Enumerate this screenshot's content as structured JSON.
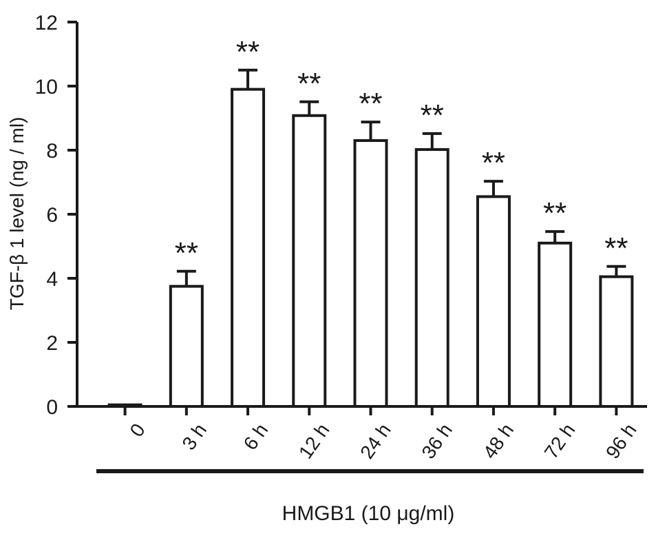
{
  "chart_data": {
    "type": "bar",
    "title": "",
    "xlabel": "",
    "ylabel": "TGF-β 1 level (ng / ml)",
    "ylim": [
      0,
      12
    ],
    "yticks": [
      "0",
      "2",
      "4",
      "6",
      "8",
      "10",
      "12"
    ],
    "categories": [
      "0",
      "3 h",
      "6 h",
      "12 h",
      "24 h",
      "36 h",
      "48 h",
      "72 h",
      "96 h"
    ],
    "values": [
      0.05,
      3.75,
      9.9,
      9.08,
      8.3,
      8.02,
      6.55,
      5.1,
      4.05
    ],
    "errors": [
      0.02,
      0.47,
      0.6,
      0.43,
      0.58,
      0.5,
      0.48,
      0.36,
      0.32
    ],
    "annotations": [
      "",
      "**",
      "**",
      "**",
      "**",
      "**",
      "**",
      "**",
      "**"
    ],
    "group_label": "HMGB1 (10 μg/ml)",
    "grid": false,
    "colors": {
      "bar_fill": "#ffffff",
      "bar_stroke": "#1a1a1a",
      "axis": "#1a1a1a"
    }
  }
}
